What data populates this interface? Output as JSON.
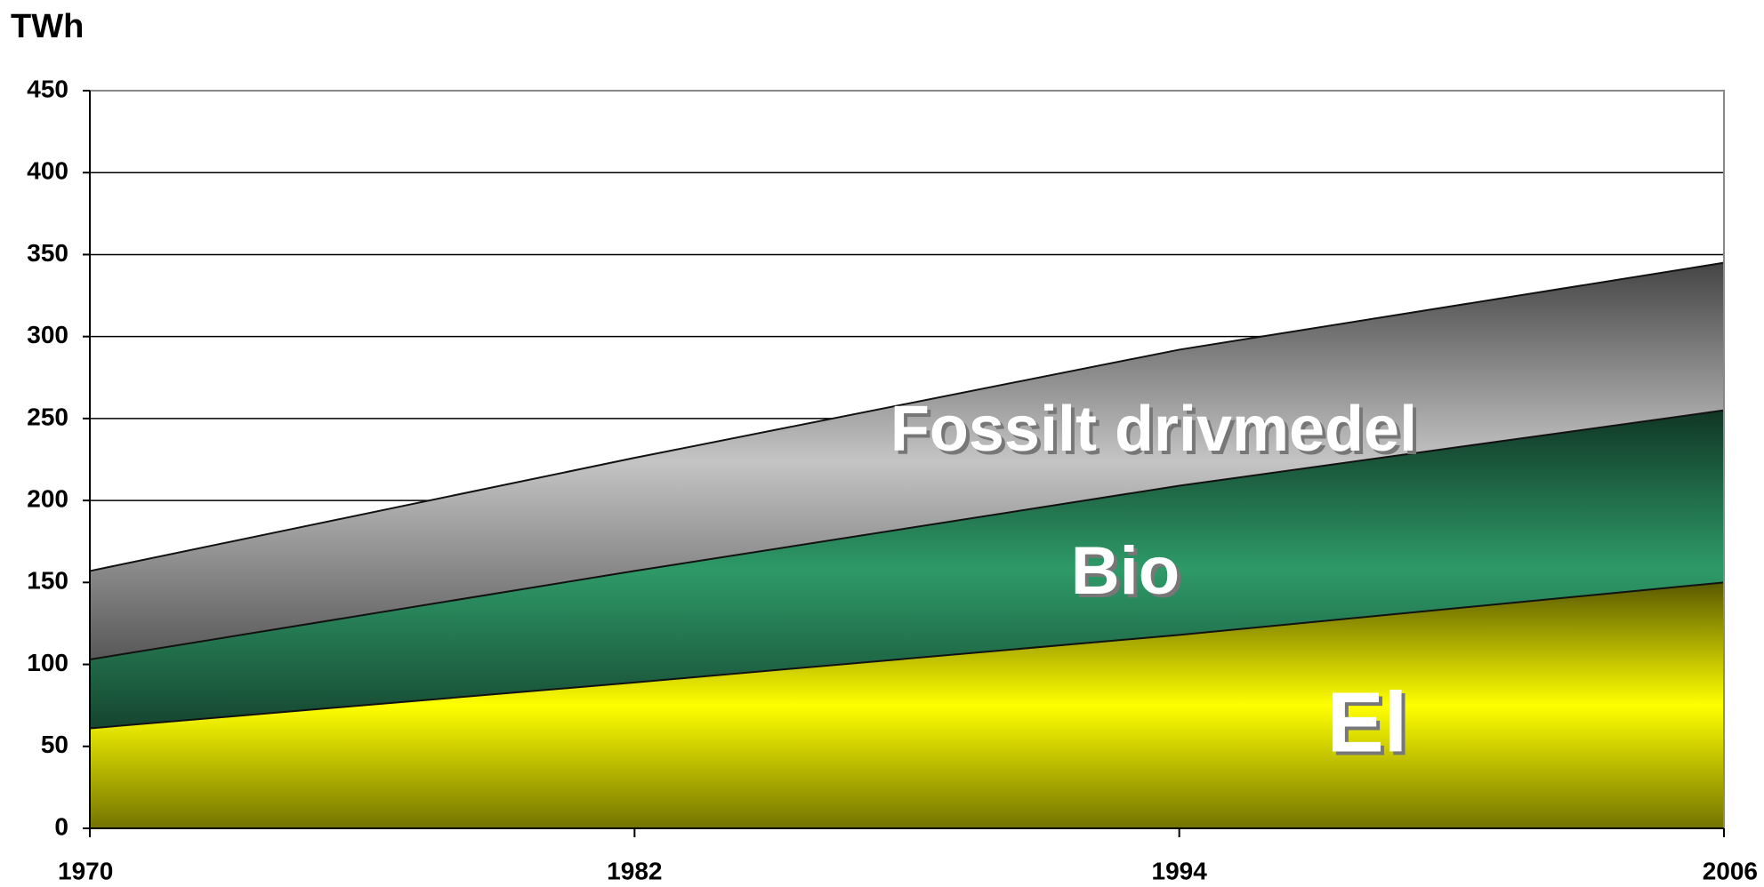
{
  "chart_data": {
    "type": "stacked_area",
    "y_label": "TWh",
    "x": [
      1970,
      1982,
      1994,
      2006
    ],
    "xlim": [
      1970,
      2006
    ],
    "xticks": [
      1970,
      1982,
      1994,
      2006
    ],
    "ylim": [
      0,
      450
    ],
    "yticks": [
      0,
      50,
      100,
      150,
      200,
      250,
      300,
      350,
      400,
      450
    ],
    "grid": true,
    "series": [
      {
        "name": "El",
        "color": "#ffff00",
        "values": [
          61,
          89,
          118,
          150
        ]
      },
      {
        "name": "Bio",
        "color": "#2e9a68",
        "values": [
          42,
          68,
          91,
          105
        ]
      },
      {
        "name": "Fossilt drivmedel",
        "color": "#c4c4c4",
        "values": [
          54,
          69,
          83,
          90
        ]
      }
    ]
  }
}
